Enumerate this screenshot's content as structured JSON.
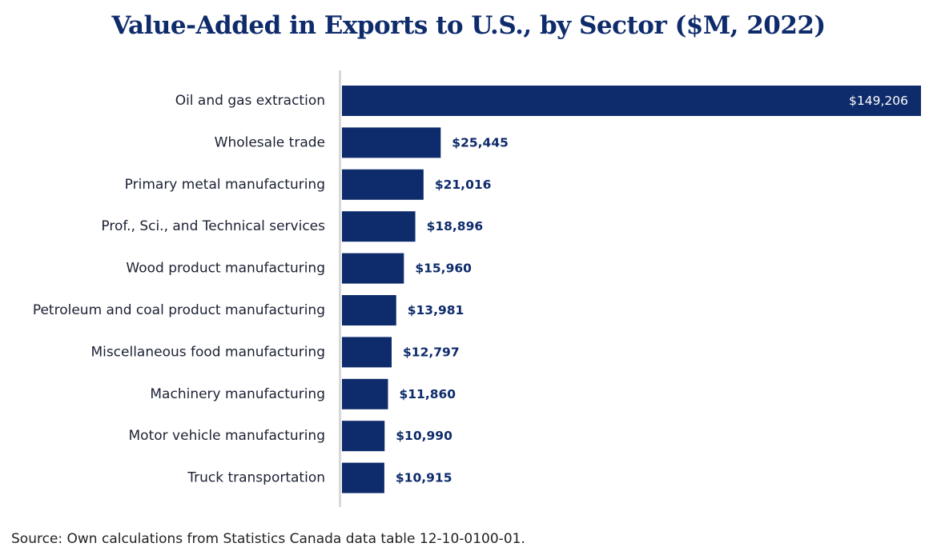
{
  "chart_data": {
    "type": "bar",
    "orientation": "horizontal",
    "title": "Value-Added in Exports to U.S., by Sector ($M, 2022)",
    "categories": [
      "Oil and gas extraction",
      "Wholesale trade",
      "Primary metal manufacturing",
      "Prof., Sci., and Technical services",
      "Wood product manufacturing",
      "Petroleum and coal product manufacturing",
      "Miscellaneous food manufacturing",
      "Machinery manufacturing",
      "Motor vehicle manufacturing",
      "Truck transportation"
    ],
    "values": [
      149206,
      25445,
      21016,
      18896,
      15960,
      13981,
      12797,
      11860,
      10990,
      10915
    ],
    "value_labels": [
      "$149,206",
      "$25,445",
      "$21,016",
      "$18,896",
      "$15,960",
      "$13,981",
      "$12,797",
      "$11,860",
      "$10,990",
      "$10,915"
    ],
    "xlim": [
      0,
      149206
    ],
    "grid": false,
    "bar_color": "#0e2b6b",
    "axis_line_color": "#d9d9d9"
  },
  "source": "Source: Own calculations from Statistics Canada data table 12-10-0100-01."
}
